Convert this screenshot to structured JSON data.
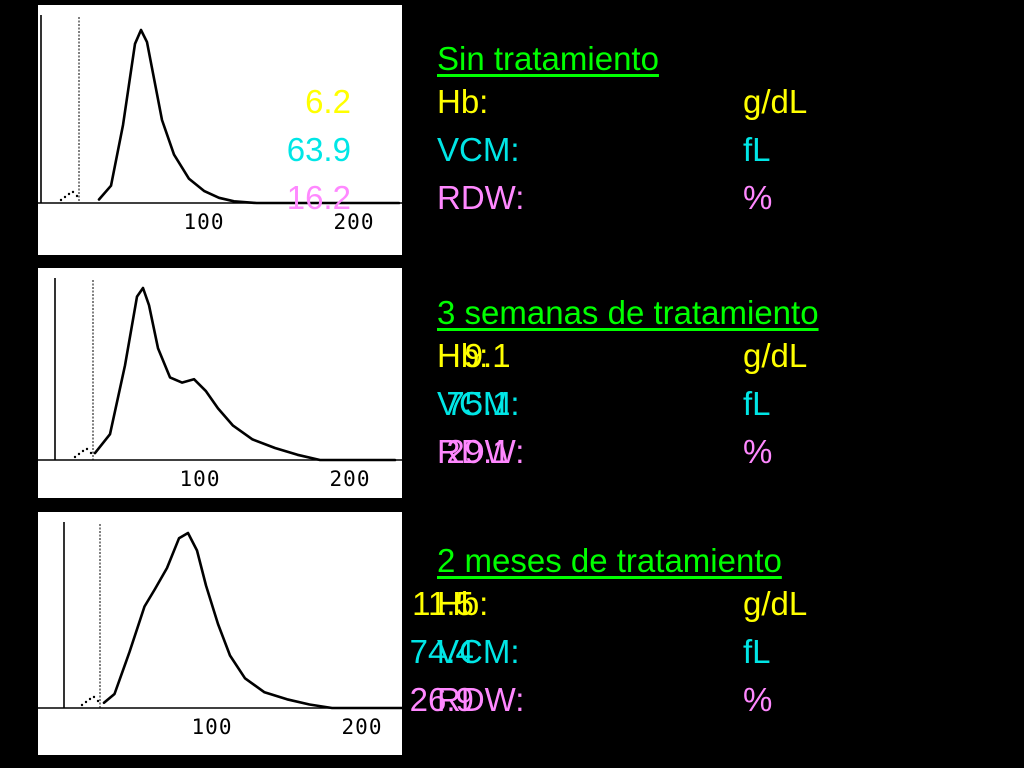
{
  "colors": {
    "background": "#000000",
    "heading": "#00ff00",
    "hb": "#ffff00",
    "vcm": "#00e6e6",
    "rdw": "#ff88ff",
    "panel": "#ffffff"
  },
  "chart_data": [
    {
      "type": "line",
      "x_ticks": [
        "100",
        "200"
      ],
      "xlim": [
        0,
        230
      ],
      "ylim": [
        0,
        1
      ],
      "grid": false,
      "x": [
        30,
        38,
        46,
        54,
        58,
        62,
        66,
        72,
        80,
        90,
        100,
        110,
        120,
        135
      ],
      "y": [
        0.02,
        0.1,
        0.45,
        0.92,
        1.0,
        0.93,
        0.75,
        0.48,
        0.28,
        0.14,
        0.07,
        0.03,
        0.01,
        0.0
      ]
    },
    {
      "type": "line",
      "x_ticks": [
        "100",
        "200"
      ],
      "xlim": [
        0,
        230
      ],
      "ylim": [
        0,
        1
      ],
      "grid": false,
      "x": [
        30,
        40,
        50,
        58,
        62,
        66,
        72,
        80,
        88,
        96,
        104,
        112,
        122,
        135,
        150,
        165,
        180
      ],
      "y": [
        0.04,
        0.15,
        0.55,
        0.95,
        1.0,
        0.9,
        0.65,
        0.48,
        0.45,
        0.47,
        0.4,
        0.3,
        0.2,
        0.12,
        0.07,
        0.03,
        0.0
      ]
    },
    {
      "type": "line",
      "x_ticks": [
        "100",
        "200"
      ],
      "xlim": [
        0,
        230
      ],
      "ylim": [
        0,
        1
      ],
      "grid": false,
      "x": [
        28,
        35,
        45,
        55,
        62,
        70,
        78,
        84,
        90,
        96,
        104,
        112,
        122,
        135,
        150,
        165,
        180
      ],
      "y": [
        0.03,
        0.08,
        0.32,
        0.58,
        0.68,
        0.8,
        0.97,
        1.0,
        0.9,
        0.7,
        0.48,
        0.3,
        0.17,
        0.09,
        0.05,
        0.02,
        0.0
      ]
    }
  ],
  "sections": [
    {
      "title": "Sin tratamiento",
      "hb": {
        "label": "Hb:",
        "value": "6.2",
        "unit": "g/dL"
      },
      "vcm": {
        "label": "VCM:",
        "value": "63.9",
        "unit": "fL"
      },
      "rdw": {
        "label": "RDW:",
        "value": "16.2",
        "unit": "%"
      }
    },
    {
      "title": "3 semanas de tratamiento",
      "hb": {
        "label": "Hb:",
        "value": "9.1",
        "unit": "g/dL"
      },
      "vcm": {
        "label": "VCM:",
        "value": "75.1",
        "unit": "fL"
      },
      "rdw": {
        "label": "RDW:",
        "value": "29.1",
        "unit": "%"
      }
    },
    {
      "title": "2 meses de tratamiento",
      "hb": {
        "label": "Hb:",
        "value": "11.5",
        "unit": "g/dL"
      },
      "vcm": {
        "label": "VCM:",
        "value": "74.4",
        "unit": "fL"
      },
      "rdw": {
        "label": "RDW:",
        "value": "26.9",
        "unit": "%"
      }
    }
  ]
}
